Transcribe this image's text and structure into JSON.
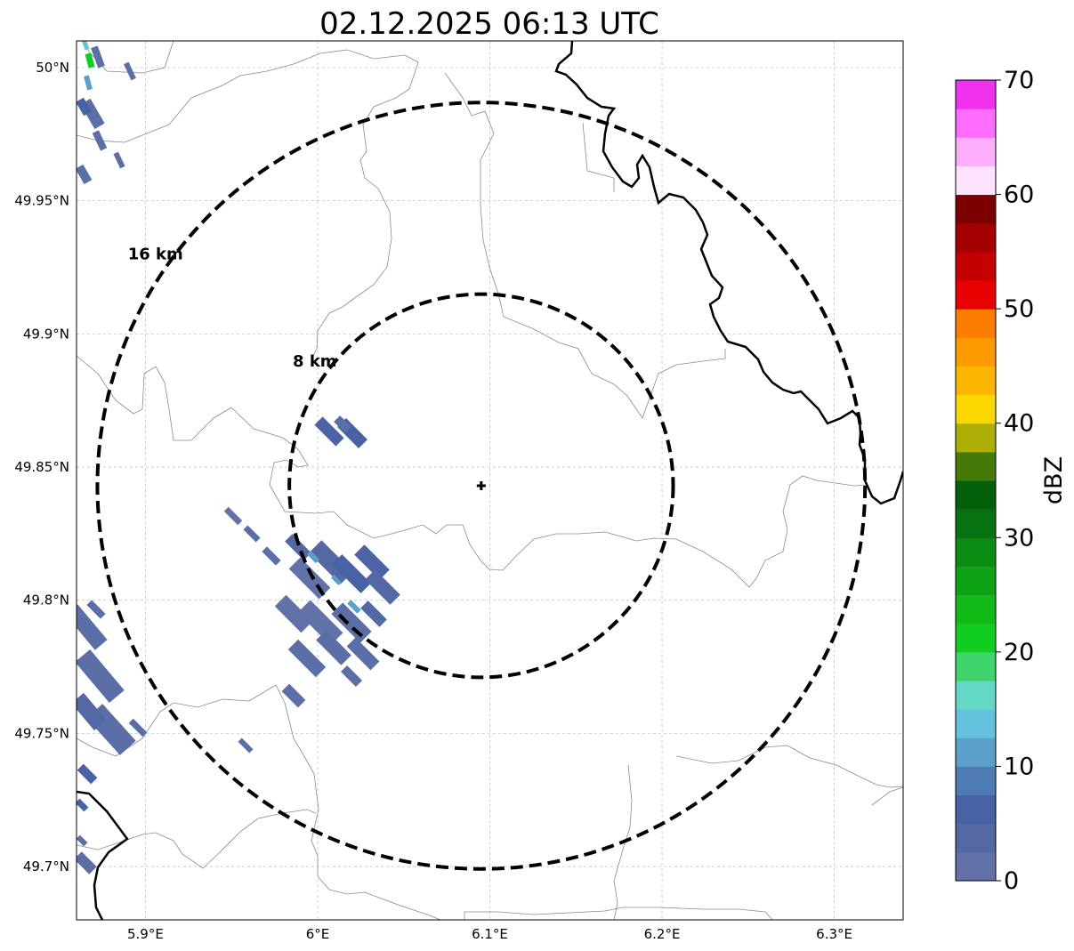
{
  "title": "02.12.2025 06:13 UTC",
  "map": {
    "lon_range": [
      5.86,
      6.34
    ],
    "lat_range": [
      49.68,
      50.01
    ],
    "lon_ticks": [
      {
        "value": 5.9,
        "label": "5.9°E"
      },
      {
        "value": 6.0,
        "label": "6°E"
      },
      {
        "value": 6.1,
        "label": "6.1°E"
      },
      {
        "value": 6.2,
        "label": "6.2°E"
      },
      {
        "value": 6.3,
        "label": "6.3°E"
      }
    ],
    "lat_ticks": [
      {
        "value": 50.0,
        "label": "50°N"
      },
      {
        "value": 49.95,
        "label": "49.95°N"
      },
      {
        "value": 49.9,
        "label": "49.9°N"
      },
      {
        "value": 49.85,
        "label": "49.85°N"
      },
      {
        "value": 49.8,
        "label": "49.8°N"
      },
      {
        "value": 49.75,
        "label": "49.75°N"
      },
      {
        "value": 49.7,
        "label": "49.7°N"
      }
    ],
    "gridlines": true,
    "radar_site": {
      "lon": 6.095,
      "lat": 49.843
    },
    "range_rings": [
      {
        "radius_km": 8,
        "label": "8 km"
      },
      {
        "radius_km": 16,
        "label": "16 km"
      }
    ]
  },
  "colorbar": {
    "label": "dBZ",
    "min": 0,
    "max": 70,
    "ticks": [
      0,
      10,
      20,
      30,
      40,
      50,
      60,
      70
    ],
    "colors": [
      "#6272a8",
      "#5468a3",
      "#4862a6",
      "#4e7bb1",
      "#5aa0c8",
      "#65c2dd",
      "#62d8c5",
      "#3fd56c",
      "#10cd20",
      "#12ba18",
      "#0ea314",
      "#0b8b12",
      "#077211",
      "#046008",
      "#467a08",
      "#adae06",
      "#fdd800",
      "#fcb600",
      "#fd9a00",
      "#fd7d00",
      "#e60000",
      "#c40000",
      "#a40000",
      "#7d0000",
      "#fde3fd",
      "#fdaffb",
      "#fd6cfb",
      "#f032ef"
    ]
  }
}
